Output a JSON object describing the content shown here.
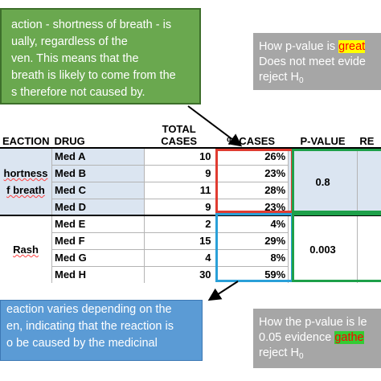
{
  "green_callout": {
    "lines": [
      "action - shortness of breath - is",
      "ually, regardless of the",
      "ven. This means that the",
      "breath is likely to come from the",
      "s therefore not caused by."
    ]
  },
  "gray_top": {
    "line1_prefix": "How p-value is ",
    "line1_highlight": "great",
    "line2": "Does not meet evide",
    "line3_prefix": "reject H",
    "line3_sub": "0"
  },
  "table": {
    "headers": {
      "reaction": "EACTION",
      "drug": "DRUG",
      "total_line1": "TOTAL",
      "total_line2": "CASES",
      "pct": "% CASES",
      "pvalue": "P-VALUE",
      "result": "RE"
    },
    "groups": [
      {
        "reaction_line1": "hortness",
        "reaction_line2": "f breath",
        "pvalue": "0.8",
        "rows": [
          {
            "drug": "Med A",
            "total": "10",
            "pct": "26%"
          },
          {
            "drug": "Med B",
            "total": "9",
            "pct": "23%"
          },
          {
            "drug": "Med C",
            "total": "11",
            "pct": "28%"
          },
          {
            "drug": "Med D",
            "total": "9",
            "pct": "23%"
          }
        ]
      },
      {
        "reaction_line1": "Rash",
        "pvalue": "0.003",
        "rows": [
          {
            "drug": "Med E",
            "total": "2",
            "pct": "4%"
          },
          {
            "drug": "Med F",
            "total": "15",
            "pct": "29%"
          },
          {
            "drug": "Med G",
            "total": "4",
            "pct": "8%"
          },
          {
            "drug": "Med H",
            "total": "30",
            "pct": "59%"
          }
        ]
      }
    ]
  },
  "blue_callout": {
    "lines": [
      "eaction varies depending on the",
      "en, indicating that the reaction is",
      "o be caused by the medicinal"
    ]
  },
  "gray_bottom": {
    "line1": "How the p-value is le",
    "line2_prefix": "0.05 evidence ",
    "line2_highlight": "gathe",
    "line3_prefix": "reject H",
    "line3_sub": "0"
  },
  "colors": {
    "green_callout": "#6aa84f",
    "blue_callout": "#5b9bd5",
    "gray_box": "#a6a6a6",
    "red_box": "#e03c31",
    "blue_box": "#2aa0d8",
    "green_box": "#1ea04a"
  }
}
